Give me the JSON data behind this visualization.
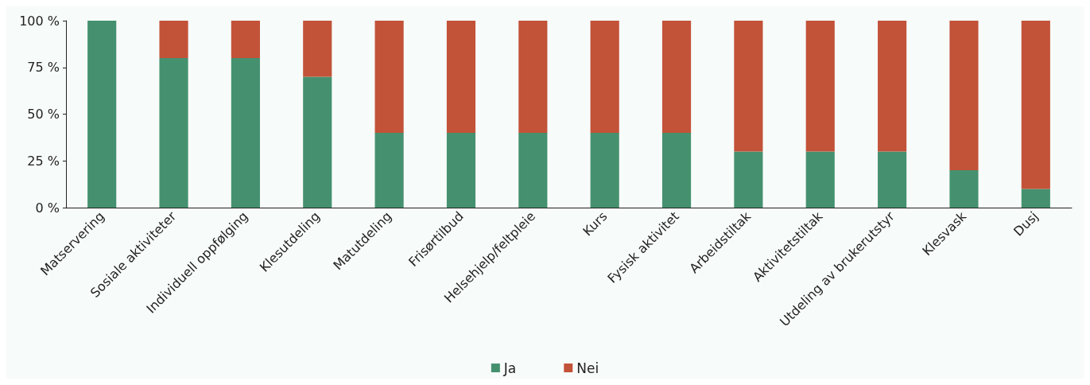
{
  "chart_data": {
    "type": "bar",
    "stacked": true,
    "categories": [
      "Matservering",
      "Sosiale aktiviteter",
      "Individuell oppfølging",
      "Klesutdeling",
      "Matutdeling",
      "Frisørtilbud",
      "Helsehjelp/feltpleie",
      "Kurs",
      "Fysisk aktivitet",
      "Arbeidstiltak",
      "Aktivitetstiltak",
      "Utdeling av brukerutstyr",
      "Klesvask",
      "Dusj"
    ],
    "series": [
      {
        "name": "Ja",
        "color": "#45916f",
        "values": [
          100,
          80,
          80,
          70,
          40,
          40,
          40,
          40,
          40,
          30,
          30,
          30,
          20,
          10
        ]
      },
      {
        "name": "Nei",
        "color": "#c25238",
        "values": [
          0,
          20,
          20,
          30,
          60,
          60,
          60,
          60,
          60,
          70,
          70,
          70,
          80,
          90
        ]
      }
    ],
    "ylim": [
      0,
      100
    ],
    "yticks": [
      {
        "value": 0,
        "label": "0 %"
      },
      {
        "value": 25,
        "label": "25 %"
      },
      {
        "value": 50,
        "label": "50 %"
      },
      {
        "value": 75,
        "label": "75 %"
      },
      {
        "value": 100,
        "label": "100 %"
      }
    ],
    "grid": false,
    "legend": "bottom"
  }
}
